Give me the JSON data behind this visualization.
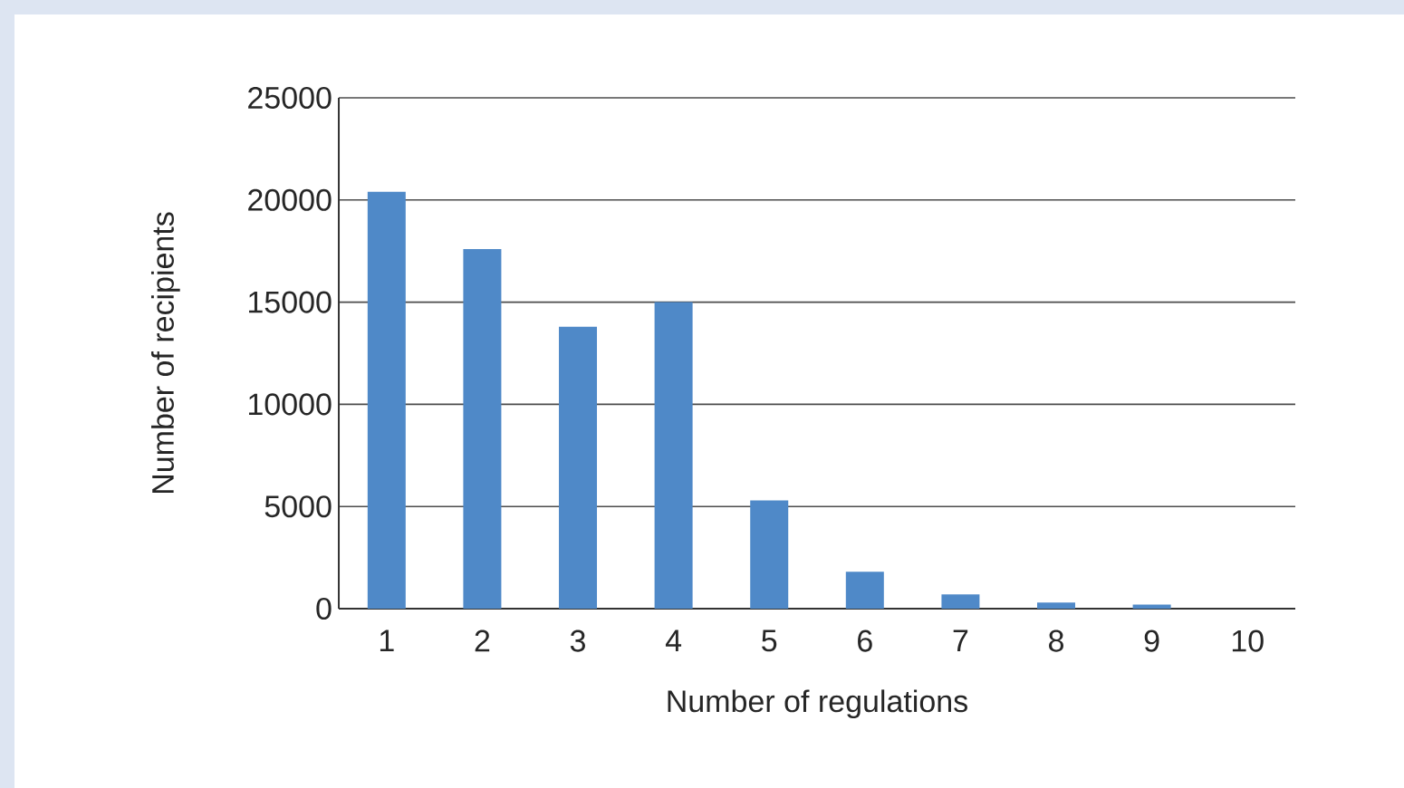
{
  "chart_data": {
    "type": "bar",
    "xlabel": "Number of regulations",
    "ylabel": "Number of recipients",
    "categories": [
      "1",
      "2",
      "3",
      "4",
      "5",
      "6",
      "7",
      "8",
      "9",
      "10"
    ],
    "values": [
      20400,
      17600,
      13800,
      15000,
      5300,
      1800,
      700,
      300,
      200,
      0
    ],
    "color": "#4f89c8",
    "ylim": [
      0,
      25000
    ],
    "yticks": [
      0,
      5000,
      10000,
      15000,
      20000,
      25000
    ],
    "grid": "y"
  }
}
